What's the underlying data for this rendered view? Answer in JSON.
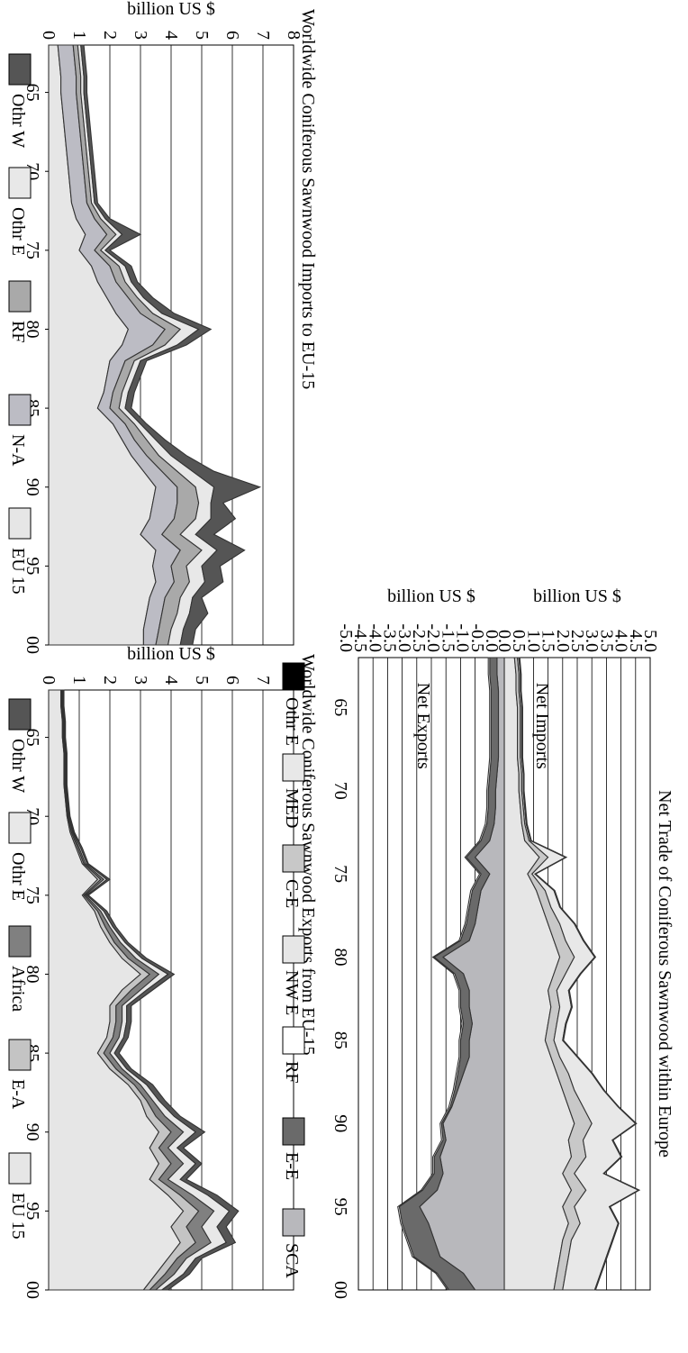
{
  "chart_data": [
    {
      "id": "imports",
      "type": "area",
      "stacked": true,
      "title": "Worldwide Coniferous Sawnwood Imports to EU-15",
      "xlabel": "",
      "ylabel": "billion US $",
      "ylim": [
        0,
        8
      ],
      "yticks": [
        0,
        1,
        2,
        3,
        4,
        5,
        6,
        7,
        8
      ],
      "xticks": [
        "65",
        "70",
        "75",
        "80",
        "85",
        "90",
        "95",
        "00"
      ],
      "grid": "horizontal",
      "legend_position": "right",
      "x": [
        62,
        63,
        64,
        65,
        66,
        67,
        68,
        69,
        70,
        71,
        72,
        73,
        74,
        75,
        76,
        77,
        78,
        79,
        80,
        81,
        82,
        83,
        84,
        85,
        86,
        87,
        88,
        89,
        90,
        91,
        92,
        93,
        94,
        95,
        96,
        97,
        98,
        99,
        100
      ],
      "series": [
        {
          "name": "EU 15",
          "color": "#e6e6e6",
          "values": [
            0.3,
            0.35,
            0.4,
            0.4,
            0.45,
            0.5,
            0.55,
            0.6,
            0.65,
            0.7,
            0.75,
            0.9,
            1.2,
            1.0,
            1.4,
            1.6,
            1.9,
            2.2,
            2.6,
            2.4,
            2.0,
            1.9,
            1.8,
            1.6,
            2.1,
            2.4,
            2.7,
            3.1,
            3.5,
            3.4,
            3.3,
            3.0,
            3.5,
            3.4,
            3.5,
            3.3,
            3.2,
            3.1,
            3.1
          ]
        },
        {
          "name": "N-A",
          "color": "#bcbcc4",
          "values": [
            0.5,
            0.5,
            0.5,
            0.5,
            0.5,
            0.5,
            0.5,
            0.5,
            0.5,
            0.5,
            0.5,
            0.6,
            0.7,
            0.5,
            0.6,
            0.6,
            0.7,
            0.8,
            1.2,
            1.0,
            0.5,
            0.4,
            0.3,
            0.4,
            0.4,
            0.4,
            0.5,
            0.6,
            0.7,
            0.8,
            0.8,
            0.7,
            0.8,
            0.6,
            0.6,
            0.5,
            0.5,
            0.5,
            0.4
          ]
        },
        {
          "name": "RF",
          "color": "#a9a9a9",
          "values": [
            0.15,
            0.15,
            0.15,
            0.15,
            0.15,
            0.15,
            0.15,
            0.15,
            0.15,
            0.15,
            0.15,
            0.2,
            0.3,
            0.2,
            0.3,
            0.3,
            0.3,
            0.4,
            0.5,
            0.4,
            0.3,
            0.3,
            0.3,
            0.3,
            0.3,
            0.4,
            0.4,
            0.5,
            0.6,
            0.7,
            0.7,
            0.6,
            0.7,
            0.5,
            0.5,
            0.5,
            0.5,
            0.4,
            0.4
          ]
        },
        {
          "name": "Othr E",
          "color": "#e8e8e8",
          "values": [
            0.1,
            0.1,
            0.1,
            0.1,
            0.1,
            0.1,
            0.1,
            0.1,
            0.1,
            0.1,
            0.1,
            0.15,
            0.2,
            0.15,
            0.2,
            0.2,
            0.2,
            0.3,
            0.6,
            0.4,
            0.2,
            0.2,
            0.2,
            0.2,
            0.2,
            0.3,
            0.4,
            0.5,
            0.6,
            0.4,
            0.5,
            0.5,
            0.5,
            0.5,
            0.5,
            0.4,
            0.4,
            0.4,
            0.4
          ]
        },
        {
          "name": "Othr W",
          "color": "#555555",
          "values": [
            0.1,
            0.1,
            0.1,
            0.1,
            0.1,
            0.1,
            0.1,
            0.1,
            0.1,
            0.1,
            0.1,
            0.15,
            0.6,
            0.15,
            0.2,
            0.2,
            0.3,
            0.4,
            0.4,
            0.3,
            0.2,
            0.2,
            0.2,
            0.2,
            0.2,
            0.3,
            0.5,
            0.7,
            1.5,
            0.4,
            0.8,
            0.6,
            0.9,
            0.6,
            0.6,
            0.3,
            0.6,
            0.4,
            0.4
          ]
        }
      ]
    },
    {
      "id": "exports",
      "type": "area",
      "stacked": true,
      "title": "Worldwide Coniferous Sawnwood Exports from EU-15",
      "xlabel": "",
      "ylabel": "billion US $",
      "ylim": [
        0,
        8
      ],
      "yticks": [
        0,
        1,
        2,
        3,
        4,
        5,
        6,
        7,
        8
      ],
      "xticks": [
        "65",
        "70",
        "75",
        "80",
        "85",
        "90",
        "95",
        "00"
      ],
      "grid": "horizontal",
      "legend_position": "right",
      "x": [
        62,
        63,
        64,
        65,
        66,
        67,
        68,
        69,
        70,
        71,
        72,
        73,
        74,
        75,
        76,
        77,
        78,
        79,
        80,
        81,
        82,
        83,
        84,
        85,
        86,
        87,
        88,
        89,
        90,
        91,
        92,
        93,
        94,
        95,
        96,
        97,
        98,
        99,
        100
      ],
      "series": [
        {
          "name": "EU 15",
          "color": "#e6e6e6",
          "values": [
            0.4,
            0.4,
            0.45,
            0.45,
            0.5,
            0.5,
            0.5,
            0.55,
            0.6,
            0.7,
            0.9,
            1.1,
            1.6,
            1.1,
            1.5,
            1.7,
            2.0,
            2.4,
            3.0,
            2.4,
            2.0,
            2.0,
            1.9,
            1.6,
            2.0,
            2.6,
            3.0,
            3.2,
            3.6,
            3.3,
            3.6,
            3.3,
            3.9,
            4.4,
            4.0,
            4.3,
            3.9,
            3.5,
            3.1
          ]
        },
        {
          "name": "E-A",
          "color": "#c4c4c4",
          "values": [
            0.03,
            0.03,
            0.03,
            0.03,
            0.03,
            0.03,
            0.03,
            0.03,
            0.03,
            0.04,
            0.05,
            0.05,
            0.1,
            0.05,
            0.1,
            0.15,
            0.15,
            0.2,
            0.3,
            0.3,
            0.2,
            0.2,
            0.2,
            0.2,
            0.2,
            0.2,
            0.2,
            0.3,
            0.4,
            0.3,
            0.4,
            0.3,
            0.4,
            0.5,
            0.5,
            0.5,
            0.3,
            0.3,
            0.2
          ]
        },
        {
          "name": "Africa",
          "color": "#808080",
          "values": [
            0.03,
            0.03,
            0.03,
            0.03,
            0.03,
            0.03,
            0.03,
            0.03,
            0.03,
            0.04,
            0.05,
            0.05,
            0.1,
            0.05,
            0.1,
            0.15,
            0.2,
            0.25,
            0.3,
            0.3,
            0.2,
            0.2,
            0.2,
            0.2,
            0.2,
            0.2,
            0.2,
            0.3,
            0.4,
            0.3,
            0.4,
            0.3,
            0.4,
            0.5,
            0.5,
            0.5,
            0.3,
            0.3,
            0.2
          ]
        },
        {
          "name": "Othr E",
          "color": "#e8e8e8",
          "values": [
            0.02,
            0.02,
            0.02,
            0.02,
            0.02,
            0.02,
            0.02,
            0.02,
            0.02,
            0.03,
            0.05,
            0.05,
            0.1,
            0.05,
            0.1,
            0.1,
            0.15,
            0.2,
            0.3,
            0.2,
            0.15,
            0.15,
            0.15,
            0.15,
            0.15,
            0.2,
            0.2,
            0.3,
            0.4,
            0.3,
            0.4,
            0.4,
            0.5,
            0.5,
            0.5,
            0.5,
            0.3,
            0.3,
            0.2
          ]
        },
        {
          "name": "Othr W",
          "color": "#555555",
          "values": [
            0.02,
            0.02,
            0.02,
            0.02,
            0.02,
            0.02,
            0.02,
            0.02,
            0.02,
            0.03,
            0.05,
            0.05,
            0.1,
            0.05,
            0.1,
            0.1,
            0.1,
            0.15,
            0.2,
            0.2,
            0.15,
            0.15,
            0.15,
            0.15,
            0.15,
            0.2,
            0.2,
            0.2,
            0.3,
            0.2,
            0.2,
            0.2,
            0.3,
            0.3,
            0.3,
            0.3,
            0.2,
            0.2,
            0.2
          ]
        }
      ]
    },
    {
      "id": "net",
      "type": "area",
      "stacked": true,
      "title": "Net Trade of Coniferous Sawnwood within Europe",
      "xlabel": "",
      "ylabel": "billion US $",
      "xticks": [
        "65",
        "70",
        "75",
        "80",
        "85",
        "90",
        "95",
        "00"
      ],
      "grid": "horizontal",
      "legend_position": "right",
      "x": [
        62,
        63,
        64,
        65,
        66,
        67,
        68,
        69,
        70,
        71,
        72,
        73,
        74,
        75,
        76,
        77,
        78,
        79,
        80,
        81,
        82,
        83,
        84,
        85,
        86,
        87,
        88,
        89,
        90,
        91,
        92,
        93,
        94,
        95,
        96,
        97,
        98,
        99,
        100
      ],
      "imports": {
        "label": "Net Imports",
        "ylim": [
          0,
          5
        ],
        "yticks": [
          "5.0",
          "4.5",
          "4.0",
          "3.5",
          "3.0",
          "2.5",
          "2.0",
          "1.5",
          "1.0",
          "0.5",
          "0.0"
        ],
        "series": [
          {
            "name": "NW E",
            "color": "#e6e6e6",
            "values": [
              0.35,
              0.4,
              0.4,
              0.45,
              0.45,
              0.45,
              0.45,
              0.5,
              0.5,
              0.55,
              0.6,
              0.7,
              1.2,
              0.8,
              1.1,
              1.3,
              1.5,
              1.7,
              1.9,
              1.7,
              1.5,
              1.6,
              1.5,
              1.4,
              1.6,
              1.8,
              2.0,
              2.2,
              2.4,
              2.2,
              2.3,
              2.0,
              2.3,
              2.0,
              2.2,
              2.0,
              1.9,
              1.8,
              1.7
            ]
          },
          {
            "name": "C-E",
            "color": "#c8c8c8",
            "values": [
              0.1,
              0.1,
              0.1,
              0.1,
              0.1,
              0.1,
              0.1,
              0.1,
              0.1,
              0.1,
              0.1,
              0.15,
              0.3,
              0.15,
              0.3,
              0.3,
              0.4,
              0.4,
              0.5,
              0.4,
              0.3,
              0.3,
              0.3,
              0.3,
              0.3,
              0.4,
              0.4,
              0.5,
              0.6,
              0.5,
              0.5,
              0.4,
              0.5,
              0.4,
              0.4,
              0.3,
              0.3,
              0.3,
              0.3
            ]
          },
          {
            "name": "MED",
            "color": "#e8e8e8",
            "values": [
              0.05,
              0.05,
              0.05,
              0.05,
              0.05,
              0.05,
              0.05,
              0.05,
              0.05,
              0.05,
              0.05,
              0.05,
              0.6,
              0.1,
              0.3,
              0.3,
              0.5,
              0.6,
              0.7,
              0.5,
              0.4,
              0.4,
              0.3,
              0.3,
              0.6,
              0.8,
              1.0,
              1.2,
              1.5,
              1.0,
              1.2,
              1.0,
              1.8,
              1.2,
              1.3,
              1.4,
              1.3,
              1.2,
              1.1
            ]
          },
          {
            "name": "Othr E",
            "color": "#000000",
            "values": [
              0.03,
              0.03,
              0.03,
              0.03,
              0.03,
              0.03,
              0.03,
              0.03,
              0.03,
              0.03,
              0.03,
              0.03,
              0.03,
              0.03,
              0.03,
              0.03,
              0.03,
              0.03,
              0.03,
              0.03,
              0.03,
              0.03,
              0.03,
              0.03,
              0.03,
              0.03,
              0.03,
              0.03,
              0.03,
              0.03,
              0.03,
              0.03,
              0.03,
              0.03,
              0.03,
              0.03,
              0.03,
              0.03,
              0.03
            ]
          }
        ]
      },
      "exports": {
        "label": "Net Exports",
        "ylim": [
          -5,
          0
        ],
        "yticks": [
          "0.0",
          "-0.5",
          "-1.0",
          "-1.5",
          "-2.0",
          "-2.5",
          "-3.0",
          "-3.5",
          "-4.0",
          "-4.5",
          "-5.0"
        ],
        "series": [
          {
            "name": "SCA",
            "color": "#b8b8bc",
            "values": [
              -0.25,
              -0.25,
              -0.2,
              -0.2,
              -0.2,
              -0.2,
              -0.2,
              -0.25,
              -0.3,
              -0.3,
              -0.35,
              -0.5,
              -1.0,
              -0.5,
              -0.8,
              -0.9,
              -1.0,
              -1.2,
              -2.1,
              -1.4,
              -1.2,
              -1.2,
              -1.1,
              -1.2,
              -1.2,
              -1.4,
              -1.6,
              -1.8,
              -2.1,
              -2.0,
              -2.2,
              -2.1,
              -2.3,
              -2.9,
              -2.6,
              -2.4,
              -2.2,
              -1.4,
              -1.0
            ]
          },
          {
            "name": "E-E",
            "color": "#6a6a6a",
            "values": [
              -0.25,
              -0.25,
              -0.25,
              -0.25,
              -0.25,
              -0.25,
              -0.25,
              -0.25,
              -0.25,
              -0.25,
              -0.25,
              -0.3,
              -0.3,
              -0.3,
              -0.3,
              -0.3,
              -0.3,
              -0.3,
              -0.3,
              -0.3,
              -0.3,
              -0.3,
              -0.3,
              -0.3,
              -0.3,
              -0.2,
              -0.1,
              -0.05,
              -0.05,
              -0.1,
              -0.2,
              -0.3,
              -0.5,
              -0.7,
              -0.9,
              -0.9,
              -0.9,
              -0.9,
              -0.9
            ]
          },
          {
            "name": "RF",
            "color": "#ffffff",
            "values": [
              -0.05,
              -0.05,
              -0.05,
              -0.05,
              -0.05,
              -0.05,
              -0.05,
              -0.05,
              -0.05,
              -0.05,
              -0.05,
              -0.05,
              -0.05,
              -0.05,
              -0.05,
              -0.05,
              -0.05,
              -0.05,
              -0.05,
              -0.05,
              -0.05,
              -0.05,
              -0.05,
              -0.05,
              -0.05,
              -0.05,
              -0.05,
              -0.05,
              -0.05,
              -0.05,
              -0.05,
              -0.05,
              -0.05,
              -0.05,
              -0.05,
              -0.05,
              -0.05,
              -0.05,
              -0.05
            ]
          }
        ]
      }
    }
  ]
}
